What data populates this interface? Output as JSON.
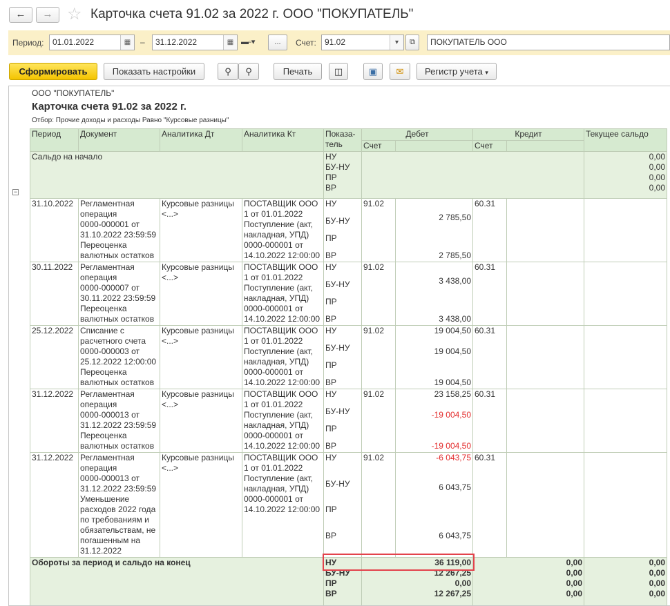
{
  "window": {
    "title": "Карточка счета 91.02 за 2022 г. ООО \"ПОКУПАТЕЛЬ\""
  },
  "filter": {
    "period_label": "Период:",
    "date_from": "01.01.2022",
    "date_sep": "–",
    "date_to": "31.12.2022",
    "dots": "...",
    "account_label": "Счет:",
    "account": "91.02",
    "org": "ПОКУПАТЕЛЬ ООО"
  },
  "toolbar": {
    "generate": "Сформировать",
    "settings": "Показать настройки",
    "print": "Печать",
    "register": "Регистр учета"
  },
  "report": {
    "org": "ООО \"ПОКУПАТЕЛЬ\"",
    "title": "Карточка счета 91.02 за 2022 г.",
    "filter": "Отбор: Прочие доходы и расходы Равно \"Курсовые разницы\"",
    "headers": {
      "period": "Период",
      "document": "Документ",
      "an_dt": "Аналитика Дт",
      "an_kt": "Аналитика Кт",
      "indicator": "Показа-\nтель",
      "debit": "Дебет",
      "credit": "Кредит",
      "balance": "Текущее сальдо",
      "account": "Счет"
    },
    "opening": {
      "label": "Сальдо на начало",
      "indicators": [
        "НУ",
        "БУ-НУ",
        "ПР",
        "ВР"
      ],
      "balance": [
        "0,00",
        "0,00",
        "0,00",
        "0,00"
      ]
    },
    "rows": [
      {
        "date": "31.10.2022",
        "doc": "Регламентная\nоперация\n0000-000001 от\n31.10.2022 23:59:59\nПереоценка\nвалютных остатков",
        "an_dt": "Курсовые разницы\n<...>",
        "an_kt": "ПОСТАВЩИК ООО\n1 от 01.01.2022\nПоступление (акт,\nнакладная, УПД)\n0000-000001 от\n14.10.2022 12:00:00",
        "ind": [
          "НУ",
          "БУ-НУ",
          "ПР",
          "ВР"
        ],
        "dt_acc": "91.02",
        "dt": [
          "",
          "2 785,50",
          "",
          "2 785,50"
        ],
        "kt_acc": "60.31"
      },
      {
        "date": "30.11.2022",
        "doc": "Регламентная\nоперация\n0000-000007 от\n30.11.2022 23:59:59\nПереоценка\nвалютных остатков",
        "an_dt": "Курсовые разницы\n<...>",
        "an_kt": "ПОСТАВЩИК ООО\n1 от 01.01.2022\nПоступление (акт,\nнакладная, УПД)\n0000-000001 от\n14.10.2022 12:00:00",
        "ind": [
          "НУ",
          "БУ-НУ",
          "ПР",
          "ВР"
        ],
        "dt_acc": "91.02",
        "dt": [
          "",
          "3 438,00",
          "",
          "3 438,00"
        ],
        "kt_acc": "60.31"
      },
      {
        "date": "25.12.2022",
        "doc": "Списание с\nрасчетного счета\n0000-000003 от\n25.12.2022 12:00:00\nПереоценка\nвалютных остатков",
        "an_dt": "Курсовые разницы\n<...>",
        "an_kt": "ПОСТАВЩИК ООО\n1 от 01.01.2022\nПоступление (акт,\nнакладная, УПД)\n0000-000001 от\n14.10.2022 12:00:00",
        "ind": [
          "НУ",
          "БУ-НУ",
          "ПР",
          "ВР"
        ],
        "dt_acc": "91.02",
        "dt": [
          "19 004,50",
          "19 004,50",
          "",
          "19 004,50"
        ],
        "kt_acc": "60.31"
      },
      {
        "date": "31.12.2022",
        "doc": "Регламентная\nоперация\n0000-000013 от\n31.12.2022 23:59:59\nПереоценка\nвалютных остатков",
        "an_dt": "Курсовые разницы\n<...>",
        "an_kt": "ПОСТАВЩИК ООО\n1 от 01.01.2022\nПоступление (акт,\nнакладная, УПД)\n0000-000001 от\n14.10.2022 12:00:00",
        "ind": [
          "НУ",
          "БУ-НУ",
          "ПР",
          "ВР"
        ],
        "dt_acc": "91.02",
        "dt": [
          "23 158,25",
          "-19 004,50",
          "",
          "-19 004,50"
        ],
        "kt_acc": "60.31"
      },
      {
        "date": "31.12.2022",
        "doc": "Регламентная\nоперация\n0000-000013 от\n31.12.2022 23:59:59\nУменьшение\nрасходов 2022 года\nпо требованиям и\nобязательствам, не\nпогашенным на\n31.12.2022",
        "an_dt": "Курсовые разницы\n<...>",
        "an_kt": "ПОСТАВЩИК ООО\n1 от 01.01.2022\nПоступление (акт,\nнакладная, УПД)\n0000-000001 от\n14.10.2022 12:00:00",
        "ind": [
          "НУ",
          "БУ-НУ",
          "ПР",
          "ВР"
        ],
        "dt_acc": "91.02",
        "dt": [
          "-6 043,75",
          "6 043,75",
          "",
          "6 043,75"
        ],
        "kt_acc": "60.31"
      }
    ],
    "totals": {
      "label": "Обороты за период и сальдо на конец",
      "indicators": [
        "НУ",
        "БУ-НУ",
        "ПР",
        "ВР"
      ],
      "debit": [
        "36 119,00",
        "12 267,25",
        "0,00",
        "12 267,25"
      ],
      "credit": [
        "0,00",
        "0,00",
        "0,00",
        "0,00"
      ],
      "balance": [
        "0,00",
        "0,00",
        "0,00",
        "0,00"
      ]
    }
  },
  "colors": {
    "header_bg": "#d6ead0",
    "group_bg": "#e6f1df",
    "negative": "#e32b2b",
    "highlight": "#e3434c",
    "primary_button": "#f4c400"
  }
}
